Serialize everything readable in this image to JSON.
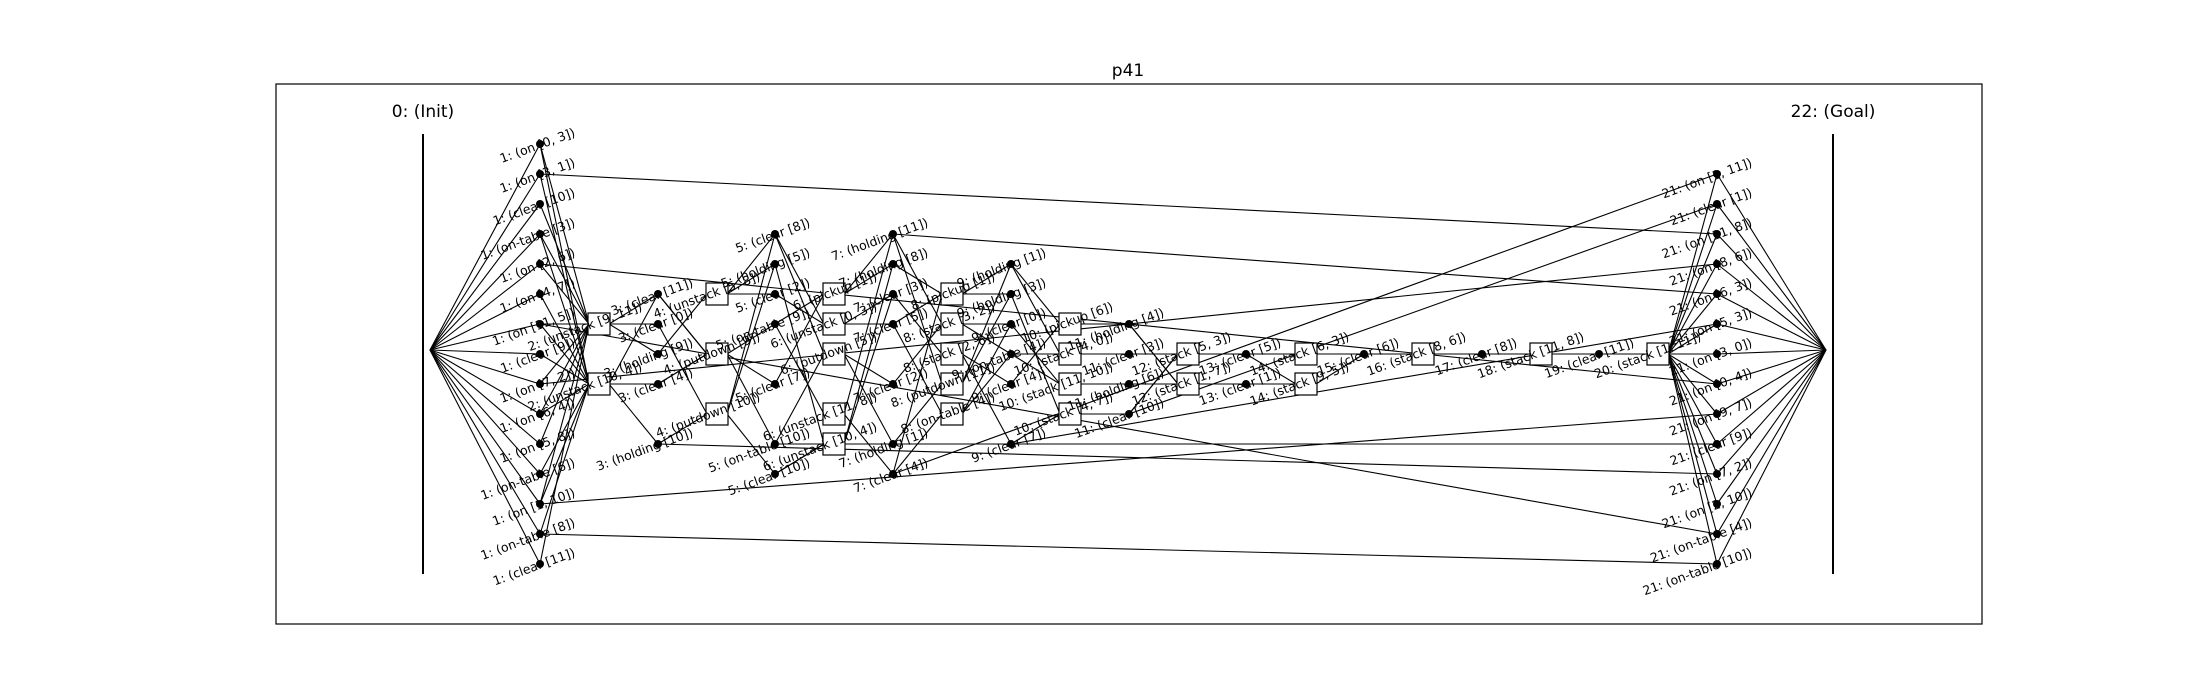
{
  "title": "p41",
  "init_label": "0: (Init)",
  "goal_label": "22: (Goal)",
  "step1": {
    "fact_labels": [
      "1: (on [0, 3])",
      "1: (on [3, 1])",
      "1: (clear [10])",
      "1: (on-table [3])",
      "1: (on [2, 6])",
      "1: (on [4, 7])",
      "1: (on [11, 5])",
      "1: (clear [9])",
      "1: (on [7, 2])",
      "1: (on [6, 4])",
      "1: (on [5, 8])",
      "1: (on-table [6])",
      "1: (on [1, 10])",
      "1: (on-table [8])",
      "1: (clear [11])"
    ],
    "action_labels": [
      "2: (unstack [9, 11])",
      "2: (unstack [10, 4])"
    ]
  },
  "step3": {
    "fact_labels": [
      "3: (clear [11])",
      "3: (clear [0])",
      "3: (holding [9])",
      "3: (clear [4])",
      "3: (holding [10])"
    ],
    "action_labels": [
      "4: (unstack [5, 8])",
      "4: (putdown [9])",
      "4: (putdown [10])"
    ]
  },
  "step5": {
    "fact_labels": [
      "5: (clear [8])",
      "5: (holding [5])",
      "5: (clear [2])",
      "5: (on-table [9])",
      "5: (clear [7])",
      "5: (on-table [10])",
      "5: (clear [10])"
    ],
    "action_labels": [
      "6: (pickup [1])",
      "6: (unstack [0, 3])",
      "6: (putdown [5])",
      "6: (unstack [11, 8])",
      "6: (unstack [10, 4])"
    ]
  },
  "step7": {
    "fact_labels": [
      "7: (holding [11])",
      "7: (holding [8])",
      "7: (clear [3])",
      "7: (clear [5])",
      "7: (clear [2])",
      "7: (holding [1])",
      "7: (clear [4])"
    ],
    "action_labels": [
      "8: (pickup [1])",
      "8: (stack [3, 2])",
      "8: (stack [2, 6])",
      "8: (putdown [11])",
      "8: (on-table [4])"
    ]
  },
  "step9": {
    "fact_labels": [
      "9: (holding [1])",
      "9: (holding [3])",
      "9: (clear [0])",
      "9: (on-table [4])",
      "9: (clear [4])",
      "9: (clear [7])"
    ],
    "action_labels": [
      "10: (pickup [6])",
      "10: (stack [4, 0])",
      "10: (stack [11, 10])",
      "10: (stack [4, 7])"
    ]
  },
  "step11": {
    "fact_labels": [
      "11: (holding [4])",
      "11: (clear [3])",
      "11: (holding [6])",
      "11: (clear [10])",
      "11: (clear [11])"
    ],
    "action_labels": [
      "12: (stack [5, 3])",
      "12: (stack [1, 7])"
    ]
  },
  "step13": {
    "fact_labels": [
      "13: (clear [5])",
      "13: (clear [1])"
    ],
    "action_labels": [
      "14: (stack [6, 3])",
      "14: (stack [9, 5])"
    ]
  },
  "step15": {
    "fact_labels": [
      "15: (clear [6])"
    ],
    "action_labels": [
      "16: (stack [8, 6])"
    ]
  },
  "step17": {
    "fact_labels": [
      "17: (clear [8])"
    ],
    "action_labels": [
      "18: (stack [11, 8])"
    ]
  },
  "step19": {
    "fact_labels": [
      "19: (clear [11])"
    ],
    "action_labels": [
      "20: (stack [1, 11])"
    ]
  },
  "step21": {
    "fact_labels": [
      "21: (on [1, 11])",
      "21: (clear [1])",
      "21: (on [11, 8])",
      "21: (on [8, 6])",
      "21: (on [6, 3])",
      "21: (on [5, 3])",
      "21: (on [3, 0])",
      "21: (on [0, 4])",
      "21: (on [9, 7])",
      "21: (clear [9])",
      "21: (on [7, 2])",
      "21: (on [2, 10])",
      "21: (on-table [4])",
      "21: (on-table [10])"
    ]
  }
}
